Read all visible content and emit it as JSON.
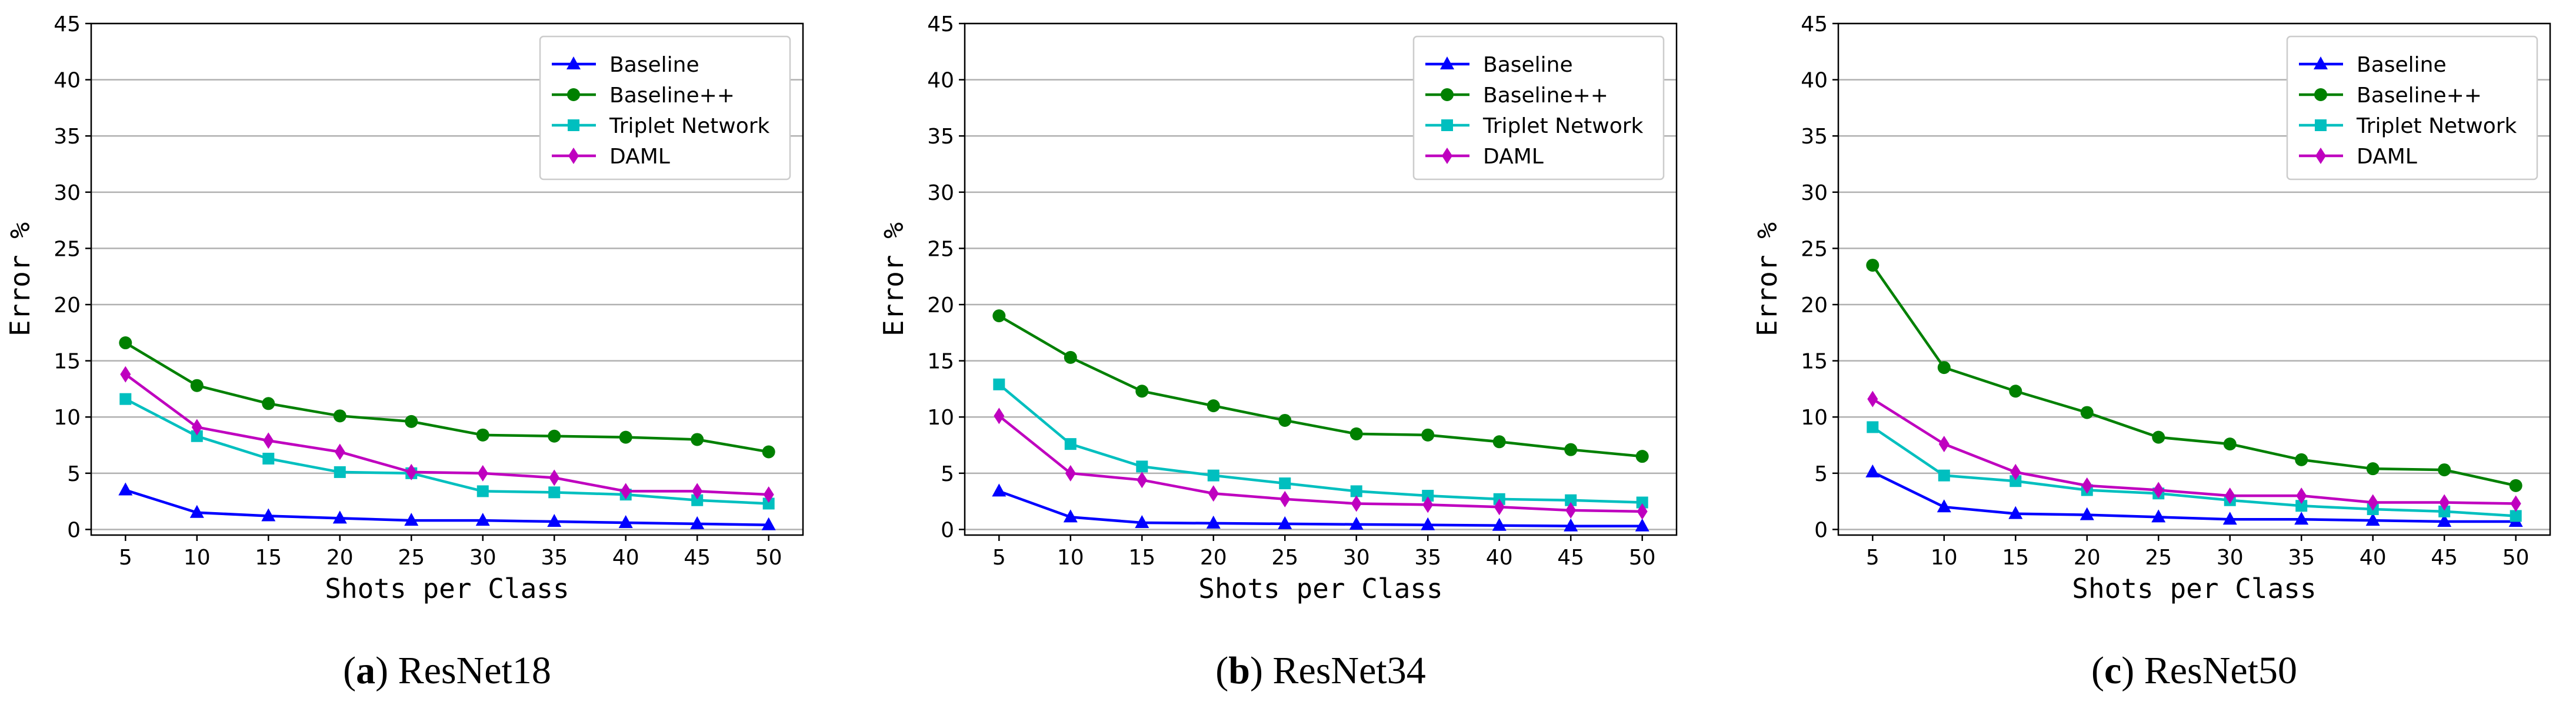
{
  "chart_data": [
    {
      "type": "line",
      "caption_letter": "a",
      "caption_name": "ResNet18",
      "xlabel": "Shots per Class",
      "ylabel": "Error %",
      "x": [
        5,
        10,
        15,
        20,
        25,
        30,
        35,
        40,
        45,
        50
      ],
      "xticks": [
        5,
        10,
        15,
        20,
        25,
        30,
        35,
        40,
        45,
        50
      ],
      "yticks": [
        0,
        5,
        10,
        15,
        20,
        25,
        30,
        35,
        40,
        45
      ],
      "xlim": [
        2.6,
        52.4
      ],
      "ylim": [
        -0.5,
        45
      ],
      "grid": "horizontal",
      "legend_position": "top-right",
      "series": [
        {
          "name": "Baseline",
          "color": "#0000ff",
          "marker": "triangle",
          "values": [
            3.5,
            1.5,
            1.2,
            1.0,
            0.8,
            0.8,
            0.7,
            0.6,
            0.5,
            0.4
          ]
        },
        {
          "name": "Baseline++",
          "color": "#008000",
          "marker": "circle",
          "values": [
            16.6,
            12.8,
            11.2,
            10.1,
            9.6,
            8.4,
            8.3,
            8.2,
            8.0,
            6.9
          ]
        },
        {
          "name": "Triplet Network",
          "color": "#00bfbf",
          "marker": "square",
          "values": [
            11.6,
            8.3,
            6.3,
            5.1,
            5.0,
            3.4,
            3.3,
            3.1,
            2.6,
            2.3
          ]
        },
        {
          "name": "DAML",
          "color": "#bf00bf",
          "marker": "diamond",
          "values": [
            13.8,
            9.1,
            7.9,
            6.9,
            5.1,
            5.0,
            4.6,
            3.4,
            3.4,
            3.1
          ]
        }
      ]
    },
    {
      "type": "line",
      "caption_letter": "b",
      "caption_name": "ResNet34",
      "xlabel": "Shots per Class",
      "ylabel": "Error %",
      "x": [
        5,
        10,
        15,
        20,
        25,
        30,
        35,
        40,
        45,
        50
      ],
      "xticks": [
        5,
        10,
        15,
        20,
        25,
        30,
        35,
        40,
        45,
        50
      ],
      "yticks": [
        0,
        5,
        10,
        15,
        20,
        25,
        30,
        35,
        40,
        45
      ],
      "xlim": [
        2.6,
        52.4
      ],
      "ylim": [
        -0.5,
        45
      ],
      "grid": "horizontal",
      "legend_position": "top-right",
      "series": [
        {
          "name": "Baseline",
          "color": "#0000ff",
          "marker": "triangle",
          "values": [
            3.4,
            1.1,
            0.6,
            0.55,
            0.5,
            0.45,
            0.4,
            0.35,
            0.3,
            0.3
          ]
        },
        {
          "name": "Baseline++",
          "color": "#008000",
          "marker": "circle",
          "values": [
            19.0,
            15.3,
            12.3,
            11.0,
            9.7,
            8.5,
            8.4,
            7.8,
            7.1,
            6.5
          ]
        },
        {
          "name": "Triplet Network",
          "color": "#00bfbf",
          "marker": "square",
          "values": [
            12.9,
            7.6,
            5.6,
            4.8,
            4.1,
            3.4,
            3.0,
            2.7,
            2.6,
            2.4
          ]
        },
        {
          "name": "DAML",
          "color": "#bf00bf",
          "marker": "diamond",
          "values": [
            10.1,
            5.0,
            4.4,
            3.2,
            2.7,
            2.3,
            2.2,
            2.0,
            1.7,
            1.6
          ]
        }
      ]
    },
    {
      "type": "line",
      "caption_letter": "c",
      "caption_name": "ResNet50",
      "xlabel": "Shots per Class",
      "ylabel": "Error %",
      "x": [
        5,
        10,
        15,
        20,
        25,
        30,
        35,
        40,
        45,
        50
      ],
      "xticks": [
        5,
        10,
        15,
        20,
        25,
        30,
        35,
        40,
        45,
        50
      ],
      "yticks": [
        0,
        5,
        10,
        15,
        20,
        25,
        30,
        35,
        40,
        45
      ],
      "xlim": [
        2.6,
        52.4
      ],
      "ylim": [
        -0.5,
        45
      ],
      "grid": "horizontal",
      "legend_position": "top-right",
      "series": [
        {
          "name": "Baseline",
          "color": "#0000ff",
          "marker": "triangle",
          "values": [
            5.1,
            2.0,
            1.4,
            1.3,
            1.1,
            0.9,
            0.9,
            0.8,
            0.7,
            0.7
          ]
        },
        {
          "name": "Baseline++",
          "color": "#008000",
          "marker": "circle",
          "values": [
            23.5,
            14.4,
            12.3,
            10.4,
            8.2,
            7.6,
            6.2,
            5.4,
            5.3,
            3.9
          ]
        },
        {
          "name": "Triplet Network",
          "color": "#00bfbf",
          "marker": "square",
          "values": [
            9.1,
            4.8,
            4.3,
            3.5,
            3.2,
            2.6,
            2.1,
            1.8,
            1.6,
            1.2
          ]
        },
        {
          "name": "DAML",
          "color": "#bf00bf",
          "marker": "diamond",
          "values": [
            11.6,
            7.6,
            5.1,
            3.9,
            3.5,
            3.0,
            3.0,
            2.4,
            2.4,
            2.3
          ]
        }
      ]
    }
  ]
}
